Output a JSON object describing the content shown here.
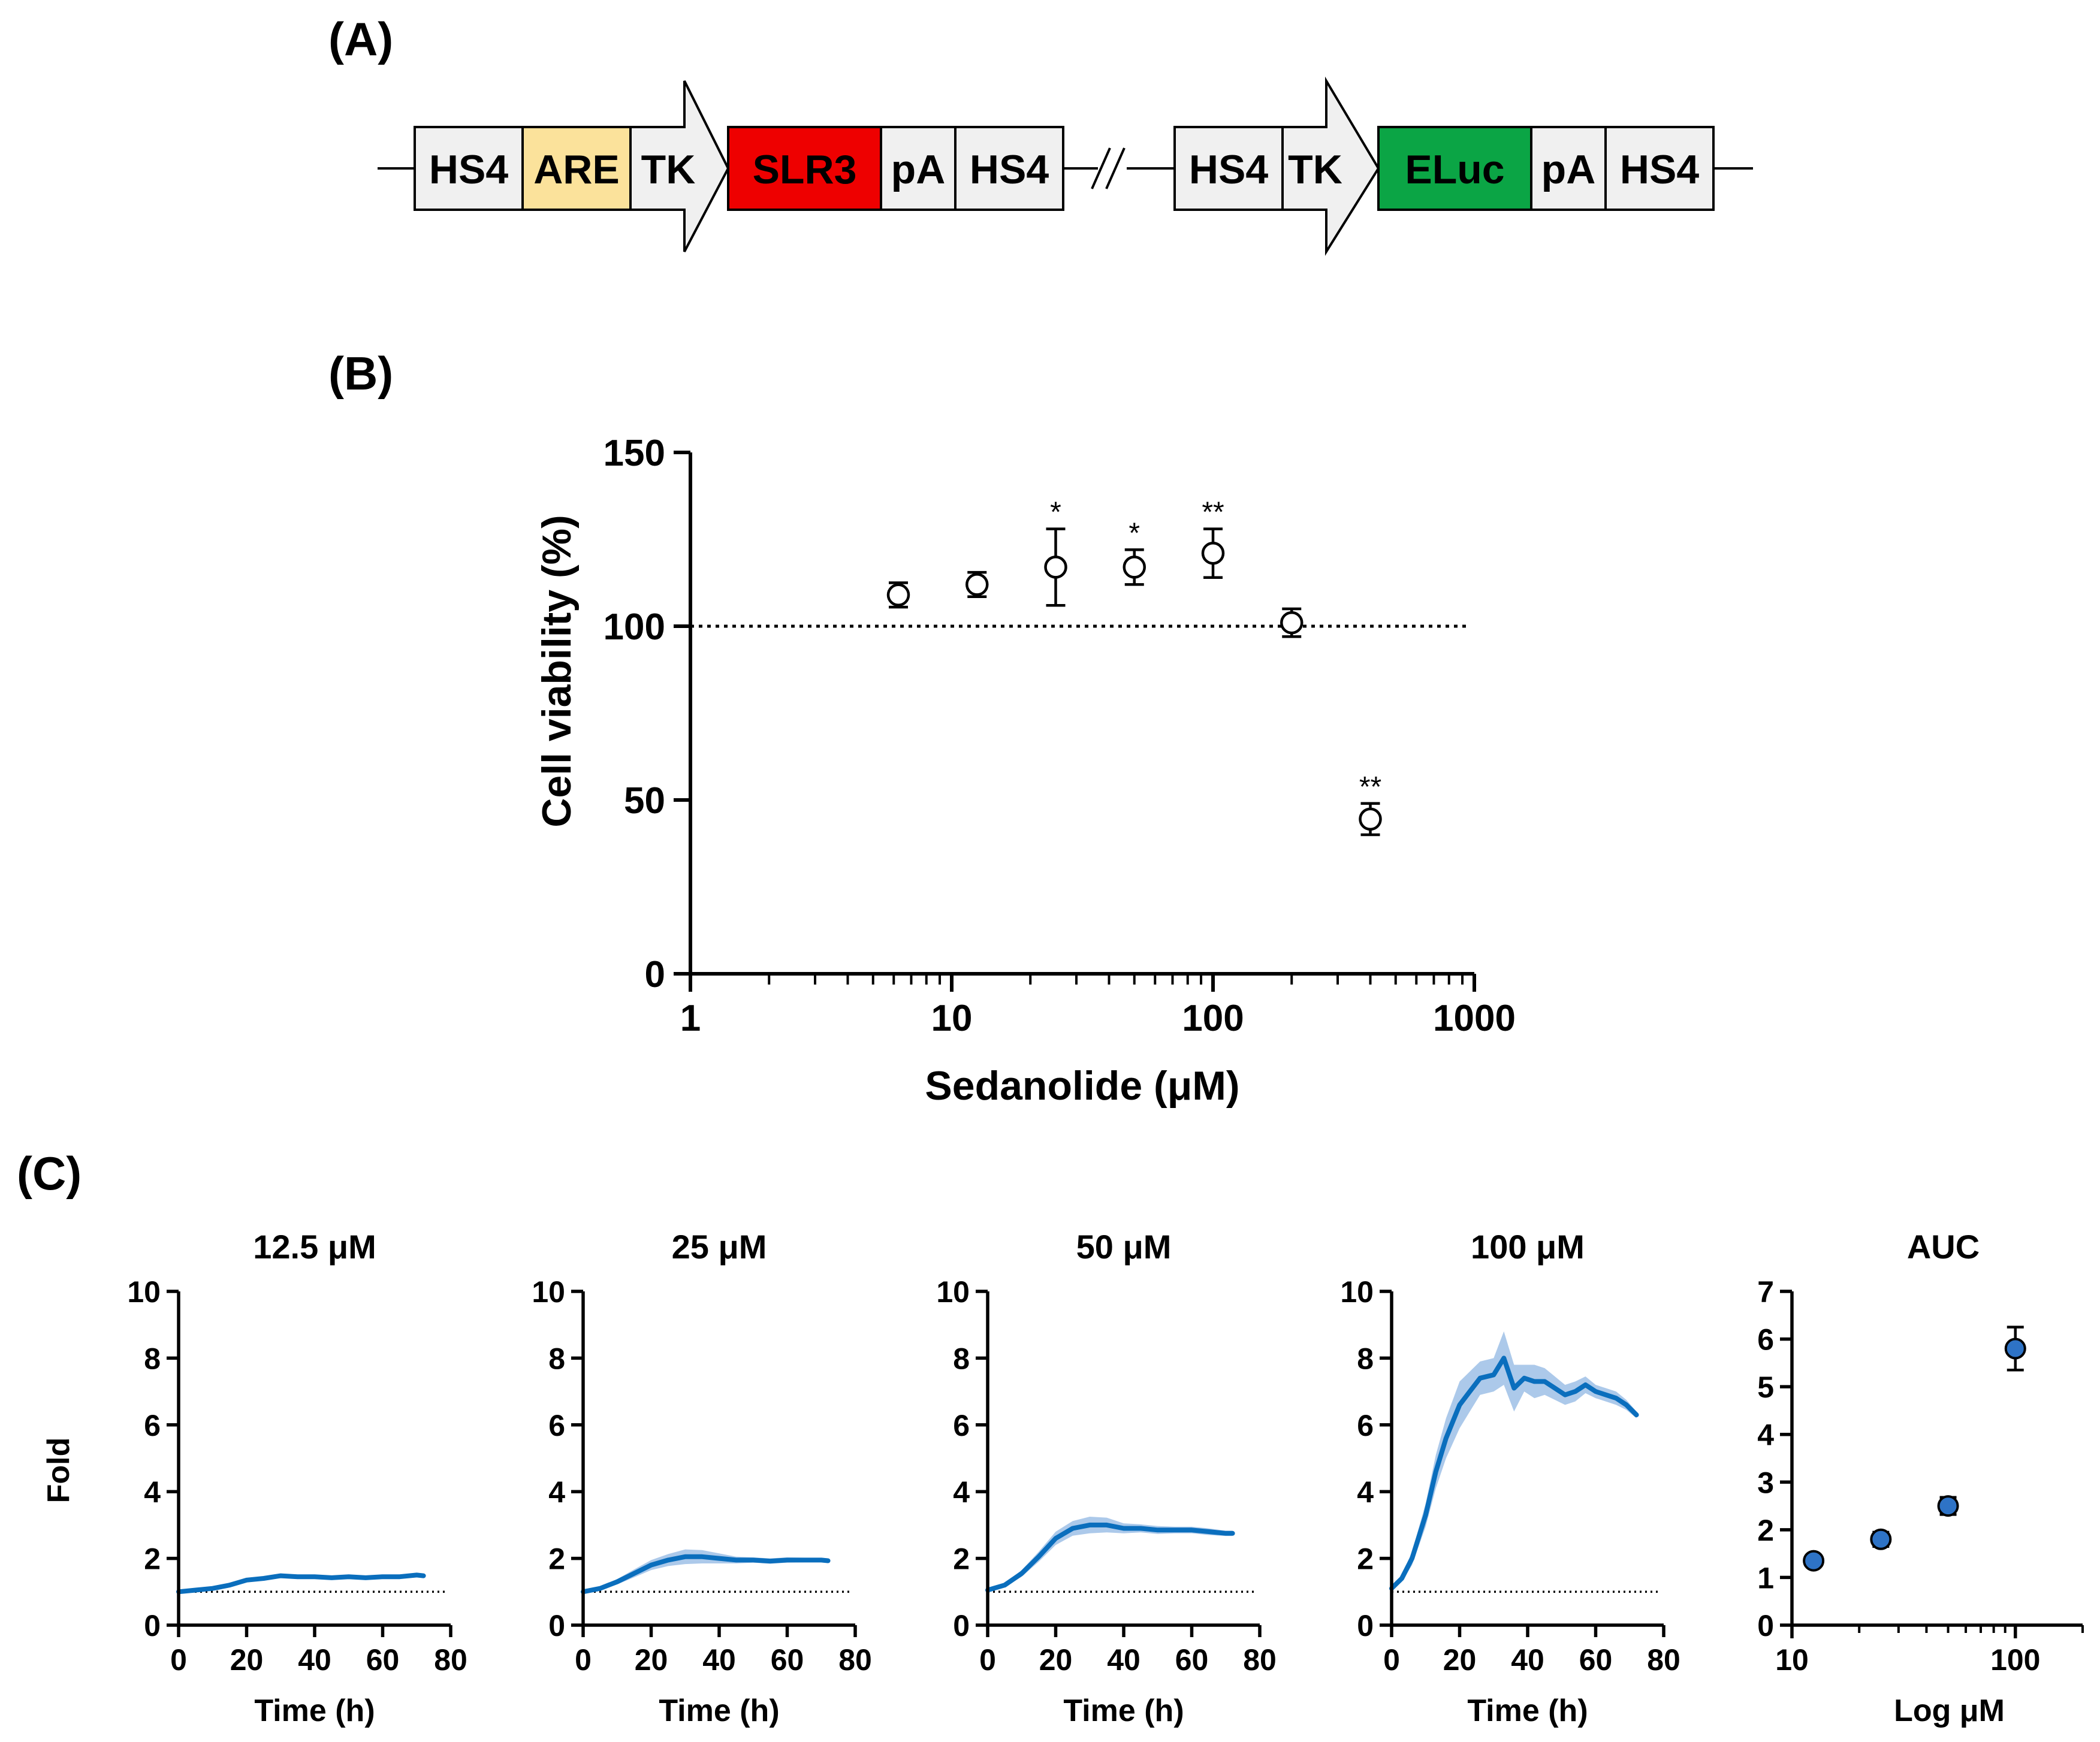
{
  "panel_labels": {
    "a": "(A)",
    "b": "(B)",
    "c": "(C)"
  },
  "colors": {
    "are": "#FBE29B",
    "slr3": "#EE0000",
    "eluc": "#0BA545",
    "box": "#F0F0F0",
    "line_blue": "#0A6EBD",
    "band_blue": "#9DBFE6",
    "dot_blue": "#2E73C6"
  },
  "construct": {
    "cassette1": [
      {
        "label": "HS4",
        "kind": "box"
      },
      {
        "label": "ARE",
        "kind": "are"
      },
      {
        "label": "TK",
        "kind": "arrow"
      },
      {
        "label": "SLR3",
        "kind": "slr3"
      },
      {
        "label": "pA",
        "kind": "box"
      },
      {
        "label": "HS4",
        "kind": "box"
      }
    ],
    "break_symbol": "//",
    "cassette2": [
      {
        "label": "HS4",
        "kind": "box"
      },
      {
        "label": "TK",
        "kind": "arrow"
      },
      {
        "label": "ELuc",
        "kind": "eluc"
      },
      {
        "label": "pA",
        "kind": "box"
      },
      {
        "label": "HS4",
        "kind": "box"
      }
    ]
  },
  "chart_data": [
    {
      "id": "B",
      "type": "scatter",
      "title": "",
      "xlabel": "Sedanolide (μM)",
      "ylabel": "Cell viability (%)",
      "xscale": "log",
      "xlim": [
        1,
        1000
      ],
      "ylim": [
        0,
        150
      ],
      "xticks": [
        1,
        10,
        100,
        1000
      ],
      "xtick_labels": [
        "1",
        "10",
        "100",
        "1000"
      ],
      "yticks": [
        0,
        50,
        100,
        150
      ],
      "ytick_labels": [
        "0",
        "50",
        "100",
        "150"
      ],
      "reference_line": 100,
      "marker": "open-circle",
      "points": [
        {
          "x": 6.25,
          "y": 109,
          "err": 3.5,
          "sig": ""
        },
        {
          "x": 12.5,
          "y": 112,
          "err": 3.5,
          "sig": ""
        },
        {
          "x": 25,
          "y": 117,
          "err": 11,
          "sig": "*"
        },
        {
          "x": 50,
          "y": 117,
          "err": 5,
          "sig": "*"
        },
        {
          "x": 100,
          "y": 121,
          "err": 7,
          "sig": "**"
        },
        {
          "x": 200,
          "y": 101,
          "err": 4,
          "sig": ""
        },
        {
          "x": 400,
          "y": 44.5,
          "err": 4.5,
          "sig": "**"
        }
      ]
    },
    {
      "id": "C-12.5",
      "type": "line",
      "title": "12.5 μM",
      "xlabel": "Time (h)",
      "ylabel": "Fold",
      "xlim": [
        0,
        80
      ],
      "ylim": [
        0,
        10
      ],
      "xticks": [
        0,
        20,
        40,
        60,
        80
      ],
      "yticks": [
        0,
        2,
        4,
        6,
        8,
        10
      ],
      "xtick_labels": [
        "0",
        "20",
        "40",
        "60",
        "80"
      ],
      "ytick_labels": [
        "0",
        "2",
        "4",
        "6",
        "8",
        "10"
      ],
      "reference_line": 1,
      "series": [
        {
          "name": "12.5 μM",
          "x": [
            0,
            5,
            10,
            15,
            20,
            25,
            30,
            35,
            40,
            45,
            50,
            55,
            60,
            65,
            70,
            72
          ],
          "y": [
            1.0,
            1.05,
            1.1,
            1.2,
            1.35,
            1.4,
            1.48,
            1.45,
            1.45,
            1.42,
            1.45,
            1.42,
            1.45,
            1.45,
            1.5,
            1.48
          ],
          "err": [
            0.02,
            0.03,
            0.04,
            0.05,
            0.06,
            0.06,
            0.07,
            0.06,
            0.06,
            0.06,
            0.06,
            0.06,
            0.06,
            0.06,
            0.07,
            0.07
          ]
        }
      ]
    },
    {
      "id": "C-25",
      "type": "line",
      "title": "25 μM",
      "xlabel": "Time (h)",
      "ylabel": "",
      "xlim": [
        0,
        80
      ],
      "ylim": [
        0,
        10
      ],
      "xticks": [
        0,
        20,
        40,
        60,
        80
      ],
      "yticks": [
        0,
        2,
        4,
        6,
        8,
        10
      ],
      "xtick_labels": [
        "0",
        "20",
        "40",
        "60",
        "80"
      ],
      "ytick_labels": [
        "0",
        "2",
        "4",
        "6",
        "8",
        "10"
      ],
      "reference_line": 1,
      "series": [
        {
          "name": "25 μM",
          "x": [
            0,
            5,
            10,
            15,
            20,
            25,
            30,
            35,
            40,
            45,
            50,
            55,
            60,
            65,
            70,
            72
          ],
          "y": [
            1.0,
            1.1,
            1.3,
            1.55,
            1.8,
            1.95,
            2.05,
            2.05,
            2.0,
            1.95,
            1.95,
            1.92,
            1.95,
            1.95,
            1.95,
            1.93
          ],
          "err": [
            0.03,
            0.05,
            0.08,
            0.12,
            0.15,
            0.18,
            0.22,
            0.2,
            0.15,
            0.1,
            0.08,
            0.08,
            0.08,
            0.07,
            0.07,
            0.07
          ]
        }
      ]
    },
    {
      "id": "C-50",
      "type": "line",
      "title": "50 μM",
      "xlabel": "Time (h)",
      "ylabel": "",
      "xlim": [
        0,
        80
      ],
      "ylim": [
        0,
        10
      ],
      "xticks": [
        0,
        20,
        40,
        60,
        80
      ],
      "yticks": [
        0,
        2,
        4,
        6,
        8,
        10
      ],
      "xtick_labels": [
        "0",
        "20",
        "40",
        "60",
        "80"
      ],
      "ytick_labels": [
        "0",
        "2",
        "4",
        "6",
        "8",
        "10"
      ],
      "reference_line": 1,
      "series": [
        {
          "name": "50 μM",
          "x": [
            0,
            5,
            10,
            15,
            20,
            25,
            30,
            35,
            40,
            45,
            50,
            55,
            60,
            65,
            70,
            72
          ],
          "y": [
            1.05,
            1.2,
            1.55,
            2.05,
            2.6,
            2.9,
            3.0,
            3.0,
            2.9,
            2.9,
            2.85,
            2.85,
            2.85,
            2.8,
            2.75,
            2.75
          ],
          "err": [
            0.03,
            0.06,
            0.1,
            0.15,
            0.2,
            0.22,
            0.25,
            0.22,
            0.15,
            0.12,
            0.12,
            0.1,
            0.1,
            0.1,
            0.08,
            0.08
          ]
        }
      ]
    },
    {
      "id": "C-100",
      "type": "line",
      "title": "100 μM",
      "xlabel": "Time (h)",
      "ylabel": "",
      "xlim": [
        0,
        80
      ],
      "ylim": [
        0,
        10
      ],
      "xticks": [
        0,
        20,
        40,
        60,
        80
      ],
      "yticks": [
        0,
        2,
        4,
        6,
        8,
        10
      ],
      "xtick_labels": [
        "0",
        "20",
        "40",
        "60",
        "80"
      ],
      "ytick_labels": [
        "0",
        "2",
        "4",
        "6",
        "8",
        "10"
      ],
      "reference_line": 1,
      "series": [
        {
          "name": "100 μM",
          "x": [
            0,
            3,
            6,
            10,
            13,
            16,
            20,
            23,
            26,
            30,
            33,
            36,
            39,
            42,
            45,
            48,
            51,
            54,
            57,
            60,
            63,
            66,
            69,
            72
          ],
          "y": [
            1.1,
            1.4,
            2.0,
            3.3,
            4.6,
            5.6,
            6.6,
            7.0,
            7.4,
            7.5,
            8.0,
            7.1,
            7.4,
            7.3,
            7.3,
            7.1,
            6.9,
            7.0,
            7.2,
            7.0,
            6.9,
            6.8,
            6.6,
            6.3
          ],
          "err": [
            0.05,
            0.1,
            0.2,
            0.35,
            0.5,
            0.6,
            0.7,
            0.6,
            0.5,
            0.5,
            0.8,
            0.7,
            0.4,
            0.5,
            0.4,
            0.35,
            0.3,
            0.3,
            0.25,
            0.2,
            0.2,
            0.2,
            0.15,
            0.1
          ]
        }
      ]
    },
    {
      "id": "C-AUC",
      "type": "scatter",
      "title": "AUC",
      "xlabel": "Log μM",
      "ylabel": "",
      "xscale": "log",
      "xlim": [
        10,
        200
      ],
      "ylim": [
        0,
        7
      ],
      "xticks": [
        10,
        100
      ],
      "xtick_labels": [
        "10",
        "100"
      ],
      "yticks": [
        0,
        1,
        2,
        3,
        4,
        5,
        6,
        7
      ],
      "ytick_labels": [
        "0",
        "1",
        "2",
        "3",
        "4",
        "5",
        "6",
        "7"
      ],
      "marker": "filled-circle",
      "points": [
        {
          "x": 12.5,
          "y": 1.35,
          "err": 0.05
        },
        {
          "x": 25,
          "y": 1.8,
          "err": 0.15
        },
        {
          "x": 50,
          "y": 2.5,
          "err": 0.18
        },
        {
          "x": 100,
          "y": 5.8,
          "err": 0.45
        }
      ]
    }
  ]
}
